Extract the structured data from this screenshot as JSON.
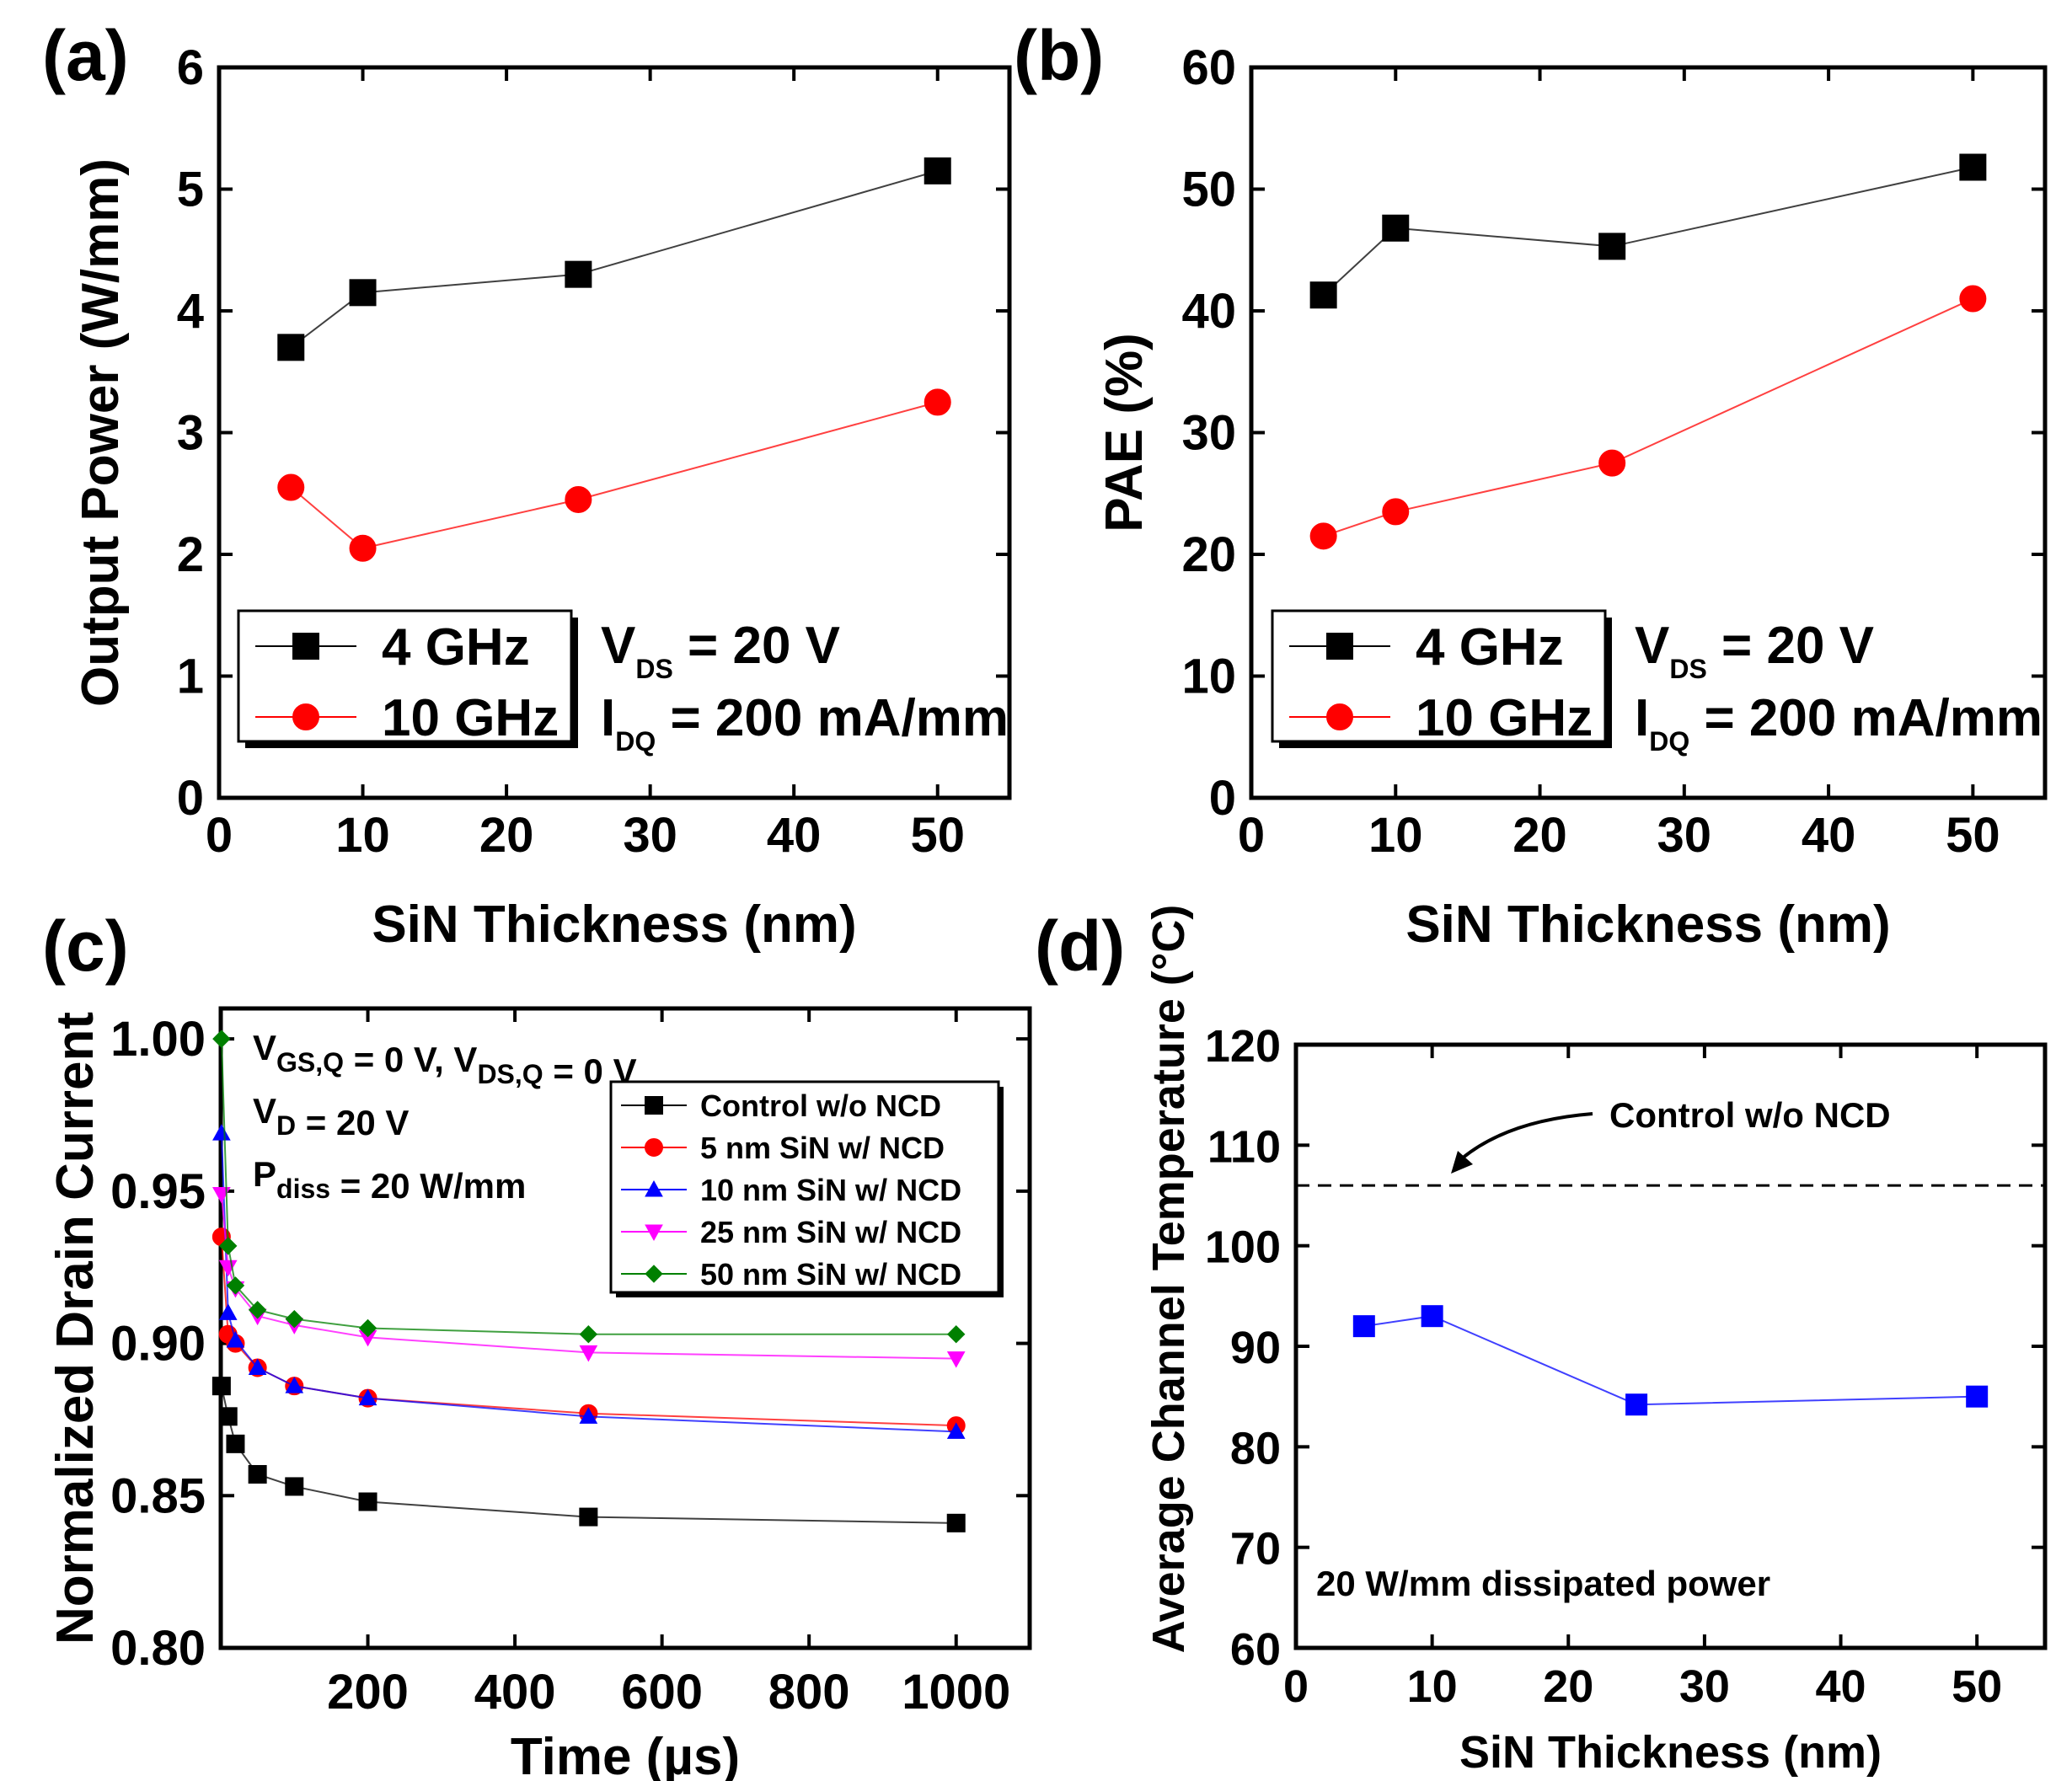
{
  "chart_data": [
    {
      "id": "a",
      "type": "line",
      "panel_label": "(a)",
      "xlabel": "SiN Thickness (nm)",
      "ylabel": "Output Power (W/mm)",
      "xlim": [
        0,
        55
      ],
      "ylim": [
        0,
        6
      ],
      "xticks": [
        0,
        10,
        20,
        30,
        40,
        50
      ],
      "yticks": [
        0,
        1,
        2,
        3,
        4,
        5,
        6
      ],
      "grid": false,
      "legend_position": "bottom-left",
      "series": [
        {
          "name": "4 GHz",
          "color": "#000000",
          "marker": "square",
          "x": [
            5,
            10,
            25,
            50
          ],
          "y": [
            3.7,
            4.15,
            4.3,
            5.15
          ]
        },
        {
          "name": "10 GHz",
          "color": "#ff0000",
          "marker": "circle",
          "x": [
            5,
            10,
            25,
            50
          ],
          "y": [
            2.55,
            2.05,
            2.45,
            3.25
          ]
        }
      ],
      "annotations": [
        {
          "main": "V",
          "sub": "DS",
          "rest": " = 20 V"
        },
        {
          "main": "I",
          "sub": "DQ",
          "rest": " = 200 mA/mm"
        }
      ]
    },
    {
      "id": "b",
      "type": "line",
      "panel_label": "(b)",
      "xlabel": "SiN Thickness (nm)",
      "ylabel": "PAE (%)",
      "xlim": [
        0,
        55
      ],
      "ylim": [
        0,
        60
      ],
      "xticks": [
        0,
        10,
        20,
        30,
        40,
        50
      ],
      "yticks": [
        0,
        10,
        20,
        30,
        40,
        50,
        60
      ],
      "grid": false,
      "legend_position": "bottom-left",
      "series": [
        {
          "name": "4 GHz",
          "color": "#000000",
          "marker": "square",
          "x": [
            5,
            10,
            25,
            50
          ],
          "y": [
            41.3,
            46.8,
            45.3,
            51.8
          ]
        },
        {
          "name": "10 GHz",
          "color": "#ff0000",
          "marker": "circle",
          "x": [
            5,
            10,
            25,
            50
          ],
          "y": [
            21.5,
            23.5,
            27.5,
            41.0
          ]
        }
      ],
      "annotations": [
        {
          "main": "V",
          "sub": "DS",
          "rest": " = 20 V"
        },
        {
          "main": "I",
          "sub": "DQ",
          "rest": " = 200 mA/mm"
        }
      ]
    },
    {
      "id": "c",
      "type": "line",
      "panel_label": "(c)",
      "xlabel": "Time (µs)",
      "ylabel": "Normalized Drain Current",
      "xlim": [
        0,
        1100
      ],
      "ylim": [
        0.8,
        1.01
      ],
      "xticks": [
        200,
        400,
        600,
        800,
        1000
      ],
      "yticks": [
        0.8,
        0.85,
        0.9,
        0.95,
        1.0
      ],
      "ytick_labels": [
        "0.80",
        "0.85",
        "0.90",
        "0.95",
        "1.00"
      ],
      "grid": false,
      "legend_position": "top-right",
      "series": [
        {
          "name": "Control w/o NCD",
          "color": "#000000",
          "marker": "square",
          "x": [
            1,
            10,
            20,
            50,
            100,
            200,
            500,
            1000
          ],
          "y": [
            0.886,
            0.876,
            0.867,
            0.857,
            0.853,
            0.848,
            0.843,
            0.841
          ]
        },
        {
          "name": "5 nm SiN w/ NCD",
          "color": "#ff0000",
          "marker": "circle",
          "x": [
            1,
            10,
            20,
            50,
            100,
            200,
            500,
            1000
          ],
          "y": [
            0.935,
            0.903,
            0.9,
            0.892,
            0.886,
            0.882,
            0.877,
            0.873
          ]
        },
        {
          "name": "10 nm SiN w/ NCD",
          "color": "#0000ff",
          "marker": "triangle-up",
          "x": [
            1,
            10,
            20,
            50,
            100,
            200,
            500,
            1000
          ],
          "y": [
            0.969,
            0.91,
            0.901,
            0.892,
            0.886,
            0.882,
            0.876,
            0.871
          ]
        },
        {
          "name": "25 nm SiN w/ NCD",
          "color": "#ff00ff",
          "marker": "triangle-down",
          "x": [
            1,
            10,
            20,
            50,
            100,
            200,
            500,
            1000
          ],
          "y": [
            0.949,
            0.925,
            0.918,
            0.909,
            0.906,
            0.902,
            0.897,
            0.895
          ]
        },
        {
          "name": "50 nm SiN w/ NCD",
          "color": "#008000",
          "marker": "diamond",
          "x": [
            1,
            10,
            20,
            50,
            100,
            200,
            500,
            1000
          ],
          "y": [
            1.0,
            0.932,
            0.919,
            0.911,
            0.908,
            0.905,
            0.903,
            0.903
          ]
        }
      ],
      "annotations": [
        {
          "parts": [
            {
              "main": "V",
              "sub": "GS,Q"
            },
            {
              "main": " = 0 V, V",
              "sub": "DS,Q"
            },
            {
              "main": " = 0 V",
              "sub": ""
            }
          ]
        },
        {
          "parts": [
            {
              "main": "V",
              "sub": "D"
            },
            {
              "main": " = 20 V",
              "sub": ""
            }
          ]
        },
        {
          "parts": [
            {
              "main": "P",
              "sub": "diss"
            },
            {
              "main": " = 20 W/mm",
              "sub": ""
            }
          ]
        }
      ]
    },
    {
      "id": "d",
      "type": "line",
      "panel_label": "(d)",
      "xlabel": "SiN Thickness (nm)",
      "ylabel": "Average Channel Temperature (°C)",
      "xlim": [
        0,
        55
      ],
      "ylim": [
        60,
        120
      ],
      "xticks": [
        0,
        10,
        20,
        30,
        40,
        50
      ],
      "yticks": [
        60,
        70,
        80,
        90,
        100,
        110,
        120
      ],
      "grid": false,
      "series": [
        {
          "name": "",
          "color": "#0000ff",
          "marker": "square",
          "x": [
            5,
            10,
            25,
            50
          ],
          "y": [
            92.0,
            93.0,
            84.2,
            85.0
          ]
        }
      ],
      "reference_line": {
        "y": 106,
        "style": "dashed",
        "color": "#000000",
        "label": "Control w/o NCD"
      },
      "note": "20 W/mm dissipated power"
    }
  ]
}
